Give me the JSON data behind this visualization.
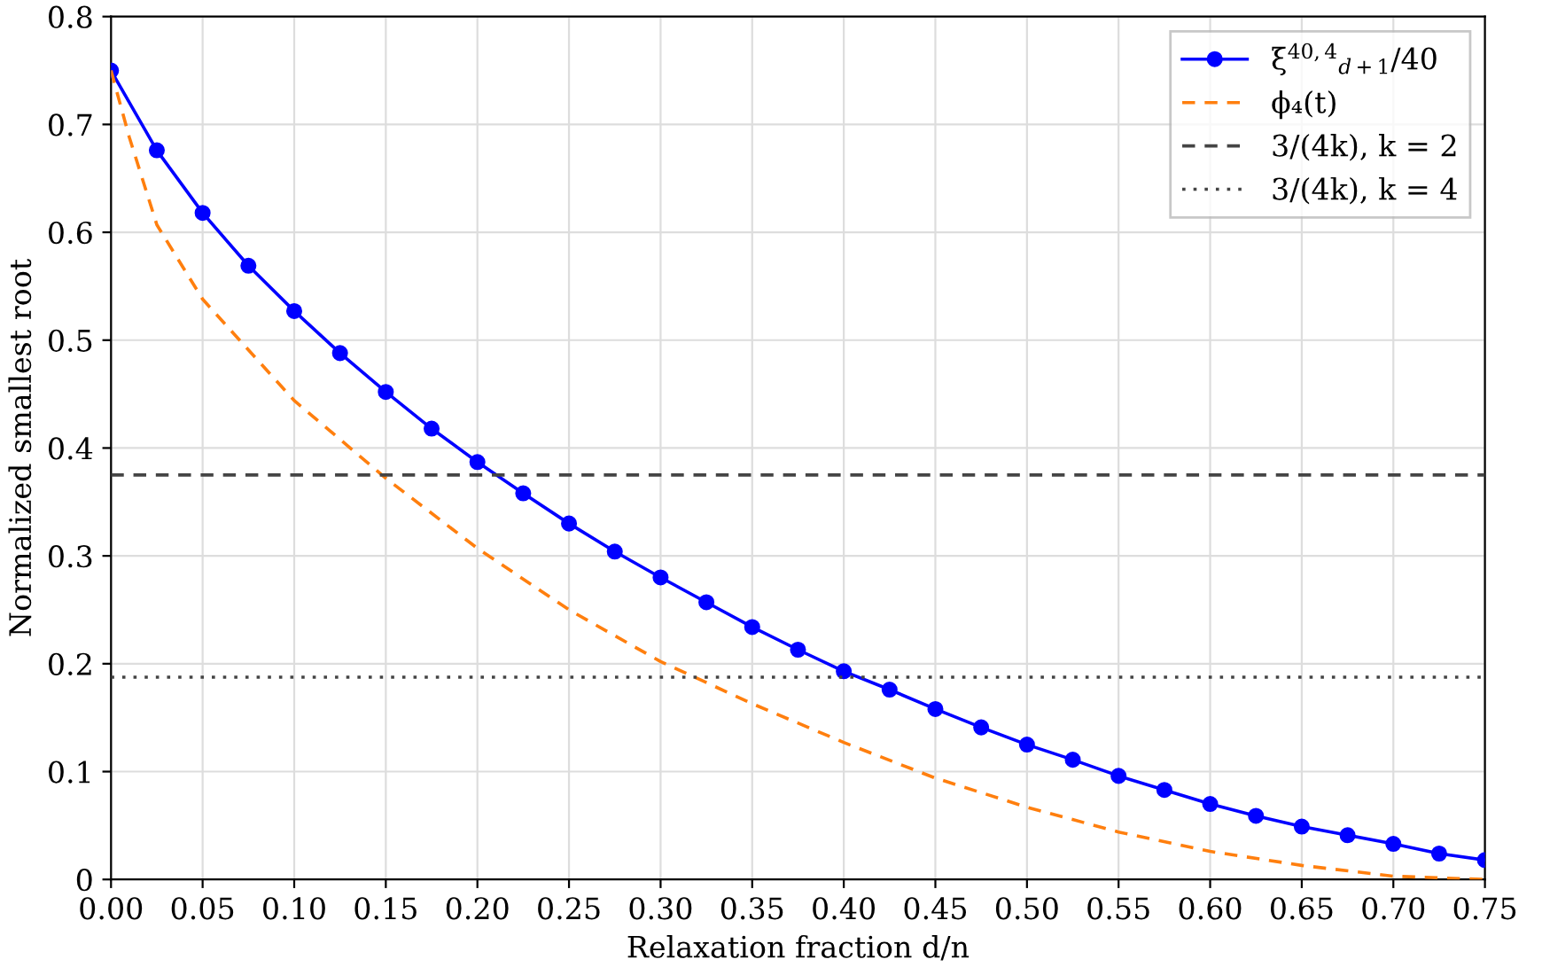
{
  "chart_data": {
    "type": "line",
    "xlabel": "Relaxation fraction d/n",
    "ylabel": "Normalized smallest root",
    "xlim": [
      0,
      0.75
    ],
    "ylim": [
      0,
      0.8
    ],
    "xticks": [
      {
        "value": 0,
        "label": "0.00"
      },
      0.05,
      {
        "value": 0.1,
        "label": "0.10"
      },
      0.15,
      {
        "value": 0.2,
        "label": "0.20"
      },
      0.25,
      {
        "value": 0.3,
        "label": "0.30"
      },
      0.35,
      {
        "value": 0.4,
        "label": "0.40"
      },
      0.45,
      {
        "value": 0.5,
        "label": "0.50"
      },
      0.55,
      {
        "value": 0.6,
        "label": "0.60"
      },
      0.65,
      {
        "value": 0.7,
        "label": "0.70"
      },
      0.75
    ],
    "yticks": [
      0,
      0.1,
      0.2,
      0.3,
      0.4,
      0.5,
      0.6,
      0.7,
      0.8
    ],
    "grid": true,
    "legend": "top right",
    "series": [
      {
        "name": "ξ$^{40,4}$$_{d+1}$/40",
        "color": "#0000ff",
        "marker": "circle",
        "line_style": "solid",
        "x": [
          0,
          0.025,
          0.05,
          0.075,
          0.1,
          0.125,
          0.15,
          0.175,
          0.2,
          0.225,
          0.25,
          0.275,
          0.3,
          0.325,
          0.35,
          0.375,
          0.4,
          0.425,
          0.45,
          0.475,
          0.5,
          0.525,
          0.55,
          0.575,
          0.6,
          0.625,
          0.65,
          0.675,
          0.7,
          0.725,
          0.75
        ],
        "values": [
          0.75,
          0.676,
          0.618,
          0.569,
          0.527,
          0.488,
          0.452,
          0.418,
          0.387,
          0.358,
          0.33,
          0.304,
          0.28,
          0.257,
          0.234,
          0.213,
          0.193,
          0.176,
          0.158,
          0.141,
          0.125,
          0.111,
          0.096,
          0.083,
          0.07,
          0.059,
          0.049,
          0.041,
          0.033,
          0.024,
          0.018
        ]
      },
      {
        "name": "ϕ₄(t)",
        "color": "#ff7f0e",
        "marker": "none",
        "line_style": "dashed",
        "x": [
          0,
          0.01,
          0.025,
          0.05,
          0.1,
          0.15,
          0.2,
          0.25,
          0.3,
          0.35,
          0.4,
          0.45,
          0.5,
          0.55,
          0.6,
          0.65,
          0.7,
          0.75
        ],
        "values": [
          0.75,
          0.688,
          0.607,
          0.538,
          0.444,
          0.372,
          0.307,
          0.25,
          0.202,
          0.163,
          0.127,
          0.094,
          0.067,
          0.044,
          0.026,
          0.013,
          0.003,
          0
        ]
      },
      {
        "name": "3/(4k), k = 2",
        "color": "#444444",
        "marker": "none",
        "line_style": "dashed",
        "x": [
          0,
          0.75
        ],
        "values": [
          0.375,
          0.375
        ]
      },
      {
        "name": "3/(4k), k = 4",
        "color": "#444444",
        "marker": "none",
        "line_style": "dotted",
        "x": [
          0,
          0.75
        ],
        "values": [
          0.1875,
          0.1875
        ]
      }
    ]
  }
}
